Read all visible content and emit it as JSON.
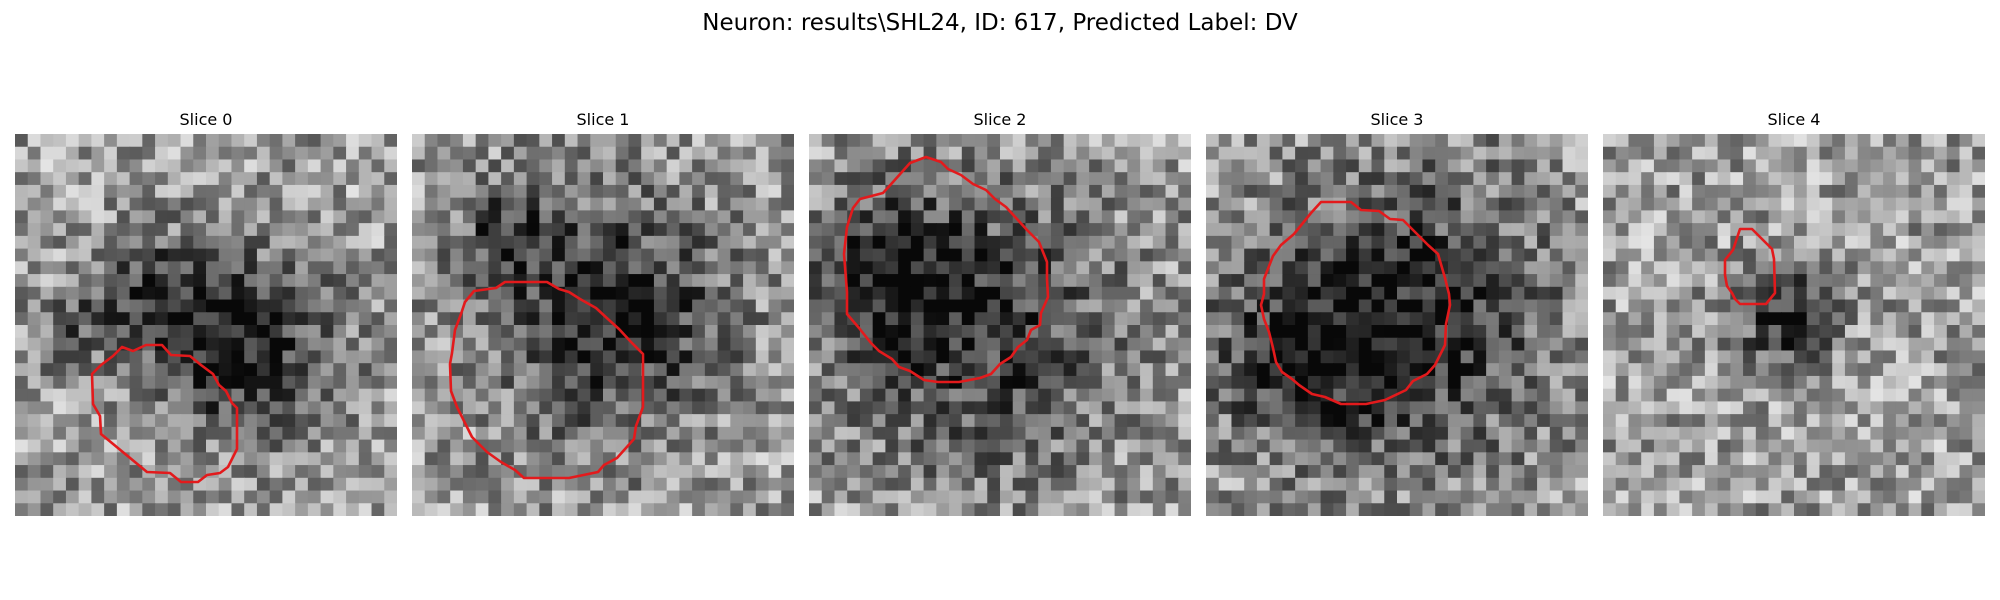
{
  "figure": {
    "title": "Neuron: results\\SHL24, ID: 617, Predicted Label: DV"
  },
  "colors": {
    "contour": "#e31a1c",
    "background": "#ffffff"
  },
  "panels": [
    {
      "title": "Slice 0"
    },
    {
      "title": "Slice 1"
    },
    {
      "title": "Slice 2"
    },
    {
      "title": "Slice 3"
    },
    {
      "title": "Slice 4"
    }
  ]
}
